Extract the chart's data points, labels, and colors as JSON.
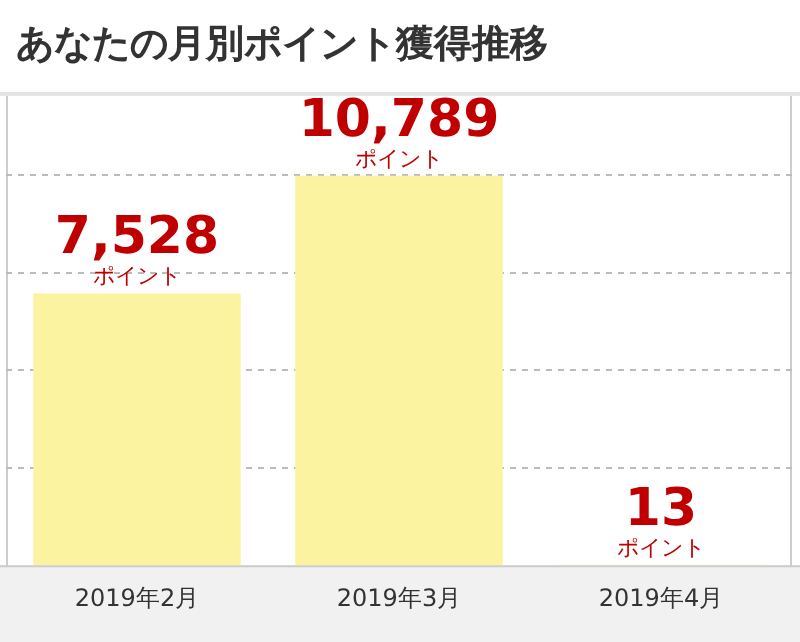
{
  "chart_data": {
    "type": "bar",
    "title": "あなたの月別ポイント獲得推移",
    "categories": [
      "2019年2月",
      "2019年3月",
      "2019年4月"
    ],
    "values": [
      7528,
      10789,
      13
    ],
    "color": "#fbf3a0",
    "value_labels": [
      "7,528 ポイント",
      "10,789 ポイント",
      "13 ポイント"
    ],
    "ylim": [
      0,
      13000
    ],
    "yticks": [
      {
        "value": 2700,
        "label": null
      },
      {
        "value": 5400,
        "label": null
      },
      {
        "value": 8100,
        "label": null
      },
      {
        "value": 10800,
        "label": null
      }
    ],
    "tick_labels": "x",
    "grid": "y",
    "legend": false
  }
}
